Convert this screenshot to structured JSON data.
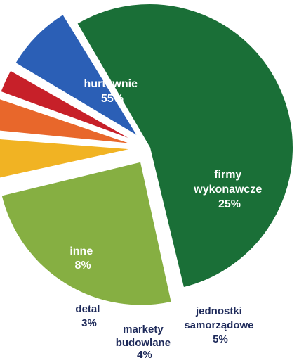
{
  "chart_data": {
    "type": "pie",
    "style": "exploded",
    "slices": [
      {
        "label": "hurtownie",
        "display_lines": [
          "hurtownie"
        ],
        "pct_label": "55%",
        "value": 55,
        "color": "#1a6f37"
      },
      {
        "label": "firmy wykonawcze",
        "display_lines": [
          "firmy",
          "wykonawcze"
        ],
        "pct_label": "25%",
        "value": 25,
        "color": "#86af42"
      },
      {
        "label": "jednostki samorządowe",
        "display_lines": [
          "jednostki",
          "samorządowe"
        ],
        "pct_label": "5%",
        "value": 5,
        "color": "#f1b323"
      },
      {
        "label": "markety budowlane",
        "display_lines": [
          "markety",
          "budowlane"
        ],
        "pct_label": "4%",
        "value": 4,
        "color": "#e8672b"
      },
      {
        "label": "detal",
        "display_lines": [
          "detal"
        ],
        "pct_label": "3%",
        "value": 3,
        "color": "#c72029"
      },
      {
        "label": "inne",
        "display_lines": [
          "inne"
        ],
        "pct_label": "8%",
        "value": 8,
        "color": "#2b5fb6"
      }
    ]
  }
}
